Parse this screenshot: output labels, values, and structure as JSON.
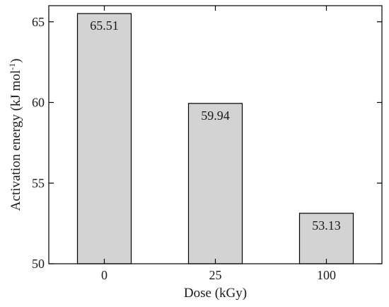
{
  "chart_data": {
    "type": "bar",
    "categories": [
      "0",
      "25",
      "100"
    ],
    "values": [
      65.51,
      59.94,
      53.13
    ],
    "value_labels": [
      "65.51",
      "59.94",
      "53.13"
    ],
    "title": "",
    "xlabel": "Dose (kGy)",
    "ylabel": "Activation energy (kJ mol",
    "ylabel_sup": "-1",
    "ylabel_suffix": ")",
    "ylim": [
      50,
      66
    ],
    "yticks": [
      50,
      55,
      60,
      65
    ],
    "ytick_labels": [
      "50",
      "55",
      "60",
      "65"
    ],
    "bar_color": "#d3d3d3",
    "bar_edge_color": "#000000",
    "grid": false,
    "legend": "none"
  }
}
